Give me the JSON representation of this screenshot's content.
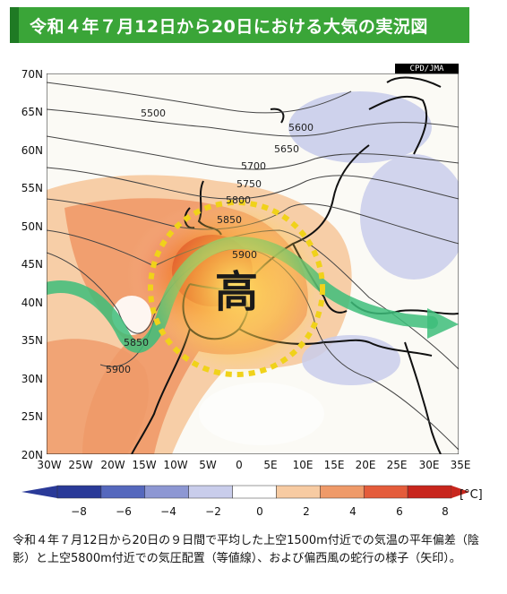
{
  "title": "令和４年７月12日から20日における大気の実況図",
  "credit": "CPD/JMA",
  "map": {
    "high_label": "高",
    "lat_labels": [
      "70N",
      "65N",
      "60N",
      "55N",
      "50N",
      "45N",
      "40N",
      "35N",
      "30N",
      "25N",
      "20N"
    ],
    "lon_labels": [
      "30W",
      "25W",
      "20W",
      "15W",
      "10W",
      "5W",
      "0",
      "5E",
      "10E",
      "15E",
      "20E",
      "25E",
      "30E",
      "35E"
    ],
    "contour_labels": [
      "5500",
      "5600",
      "5650",
      "5700",
      "5750",
      "5800",
      "5850",
      "5900",
      "5850",
      "5900"
    ]
  },
  "colorbar": {
    "ticks": [
      "−8",
      "−6",
      "−4",
      "−2",
      "0",
      "2",
      "4",
      "6",
      "8"
    ],
    "unit": "[°C]",
    "colors": [
      "#2a3a98",
      "#5568bd",
      "#8d97d3",
      "#c9cdeb",
      "#ffffff",
      "#f7cba2",
      "#ef9a69",
      "#e45c3b",
      "#c8261d"
    ]
  },
  "caption": "令和４年７月12日から20日の９日間で平均した上空1500m付近での気温の平年偏差（陰影）と上空5800m付近での気圧配置（等値線）、および偏西風の蛇行の様子（矢印）。"
}
